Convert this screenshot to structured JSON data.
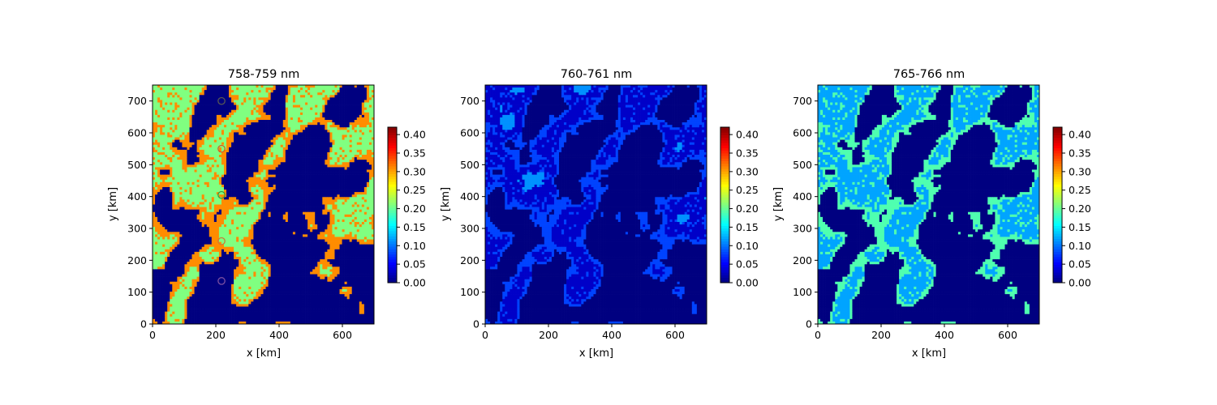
{
  "chart_data": [
    {
      "type": "heatmap",
      "title": "758-759 nm",
      "xlabel": "x [km]",
      "ylabel": "y [km]",
      "xlim": [
        0,
        700
      ],
      "ylim": [
        0,
        750
      ],
      "xticks": [
        "0",
        "200",
        "400",
        "600"
      ],
      "yticks": [
        "0",
        "100",
        "200",
        "300",
        "400",
        "500",
        "600",
        "700"
      ],
      "colormap": "jet",
      "colorbar": {
        "range": [
          0,
          0.42
        ],
        "ticks": [
          "0.00",
          "0.05",
          "0.10",
          "0.15",
          "0.20",
          "0.25",
          "0.30",
          "0.35",
          "0.40"
        ]
      },
      "cloud_level": 0.21,
      "edge_level": 0.31,
      "markers": [
        {
          "x": 218,
          "y": 700,
          "edge_color": "#555555"
        },
        {
          "x": 218,
          "y": 550,
          "edge_color": "#d45a2a"
        },
        {
          "x": 218,
          "y": 405,
          "edge_color": "#3b9a3b"
        },
        {
          "x": 218,
          "y": 260,
          "edge_color": "#c97b3a"
        },
        {
          "x": 218,
          "y": 135,
          "edge_color": "#7a4fa0"
        }
      ]
    },
    {
      "type": "heatmap",
      "title": "760-761 nm",
      "xlabel": "x [km]",
      "ylabel": "y [km]",
      "xlim": [
        0,
        700
      ],
      "ylim": [
        0,
        750
      ],
      "xticks": [
        "0",
        "200",
        "400",
        "600"
      ],
      "yticks": [
        "0",
        "100",
        "200",
        "300",
        "400",
        "500",
        "600",
        "700"
      ],
      "colormap": "jet",
      "colorbar": {
        "range": [
          0,
          0.42
        ],
        "ticks": [
          "0.00",
          "0.05",
          "0.10",
          "0.15",
          "0.20",
          "0.25",
          "0.30",
          "0.35",
          "0.40"
        ]
      },
      "cloud_level": 0.03,
      "edge_level": 0.08
    },
    {
      "type": "heatmap",
      "title": "765-766 nm",
      "xlabel": "x [km]",
      "ylabel": "y [km]",
      "xlim": [
        0,
        700
      ],
      "ylim": [
        0,
        750
      ],
      "xticks": [
        "0",
        "200",
        "400",
        "600"
      ],
      "yticks": [
        "0",
        "100",
        "200",
        "300",
        "400",
        "500",
        "600",
        "700"
      ],
      "colormap": "jet",
      "colorbar": {
        "range": [
          0,
          0.42
        ],
        "ticks": [
          "0.00",
          "0.05",
          "0.10",
          "0.15",
          "0.20",
          "0.25",
          "0.30",
          "0.35",
          "0.40"
        ]
      },
      "cloud_level": 0.12,
      "edge_level": 0.19
    }
  ]
}
